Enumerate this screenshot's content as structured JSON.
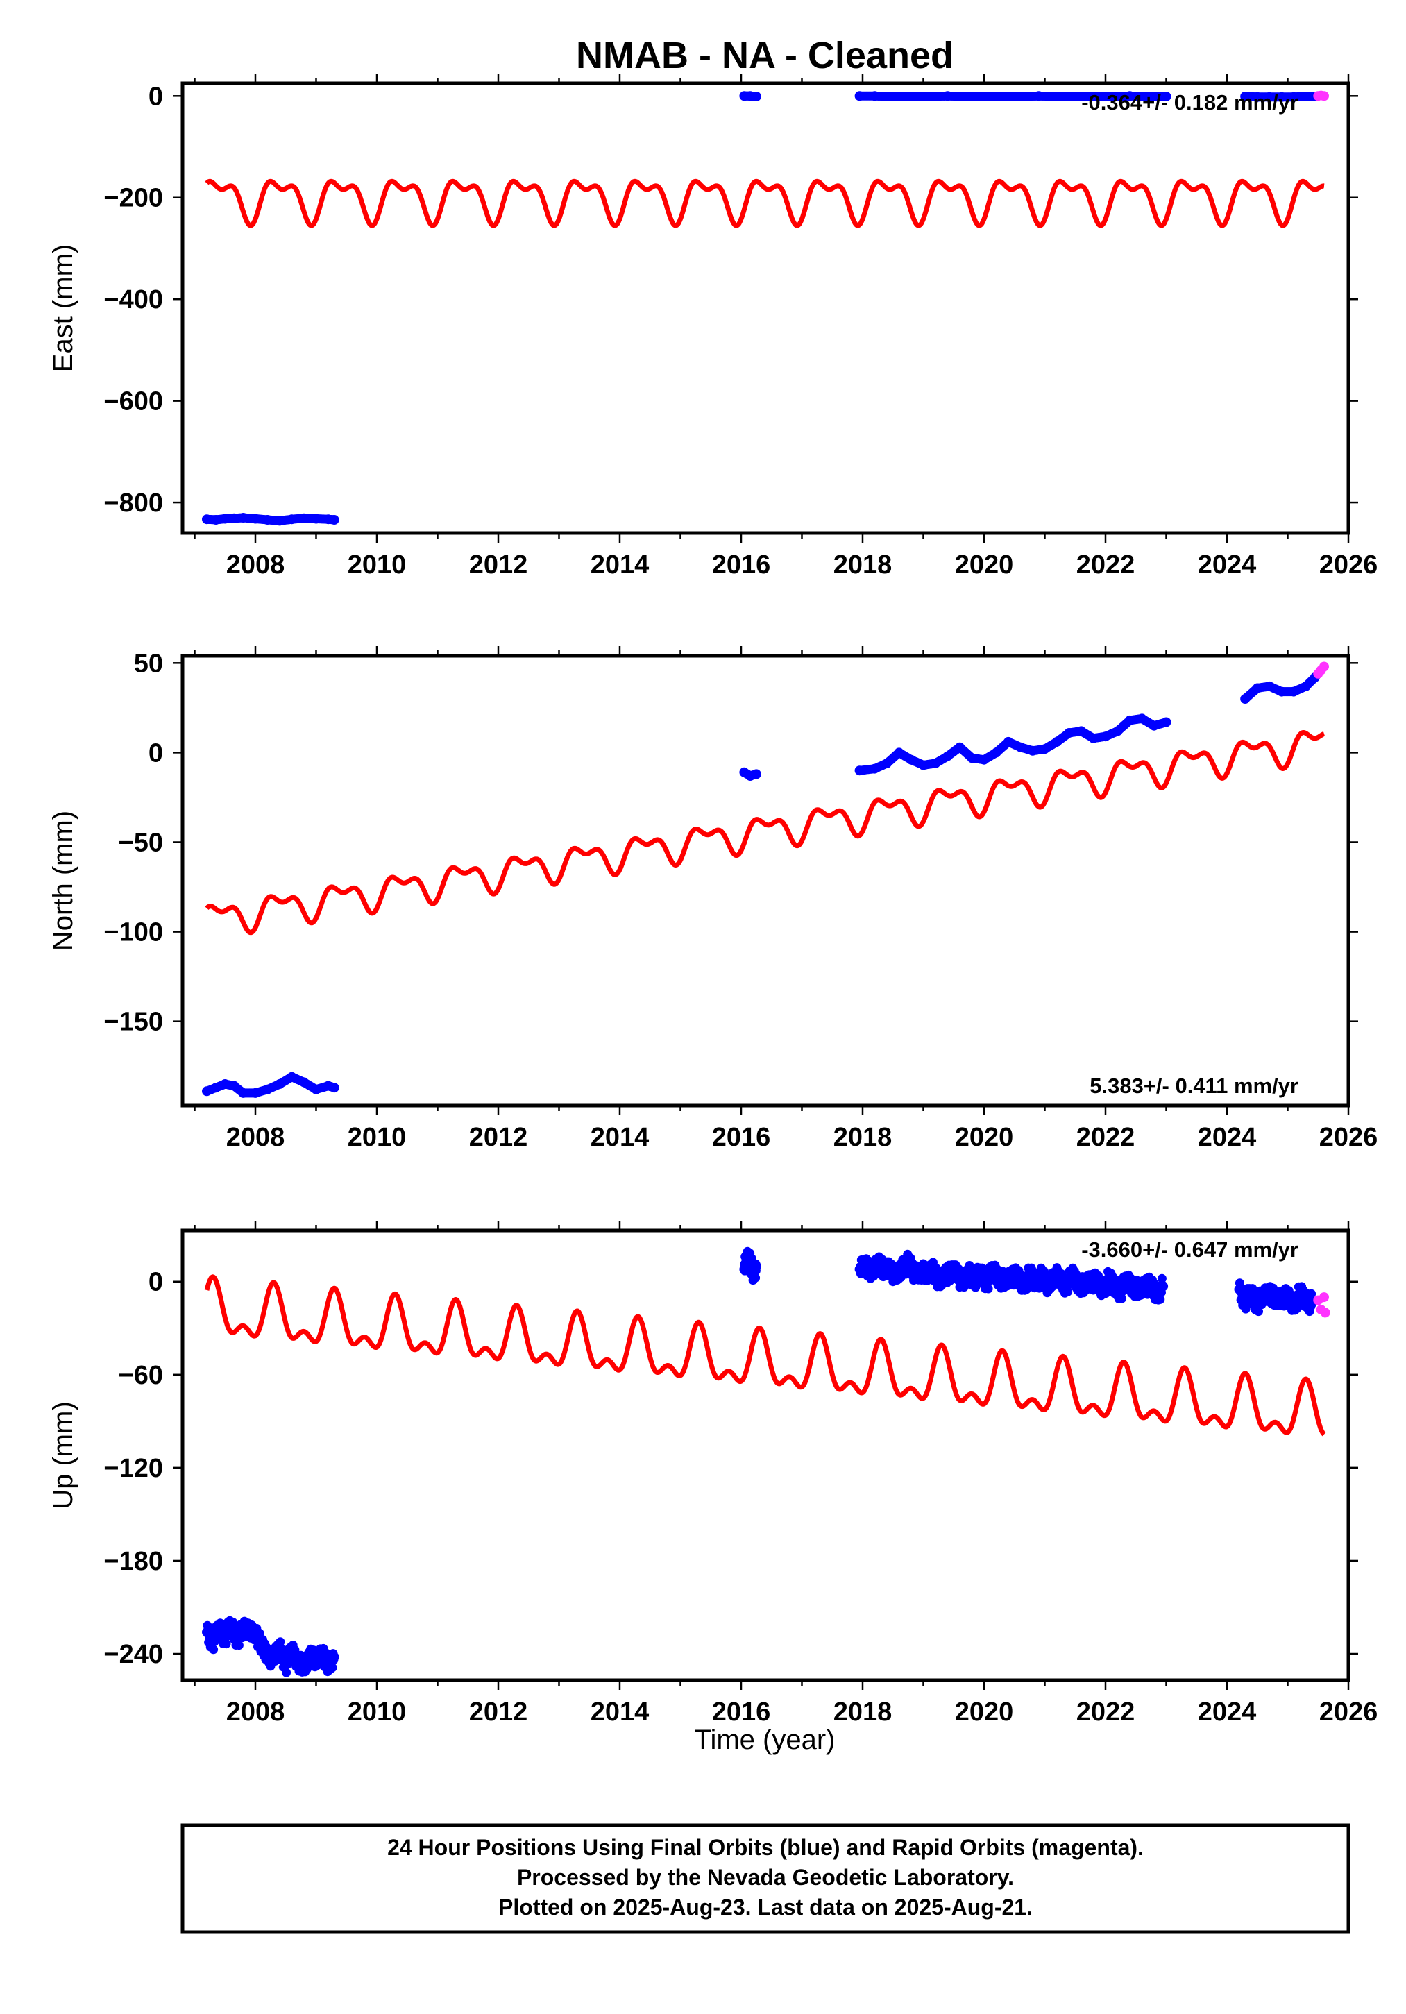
{
  "title": "NMAB  - NA - Cleaned",
  "colors": {
    "final": "#0000ff",
    "rapid": "#ff33ff",
    "model": "#ff0000",
    "frame": "#000000"
  },
  "xlabel": "Time (year)",
  "footer": [
    "24 Hour Positions Using Final Orbits (blue) and Rapid Orbits (magenta).",
    "Processed by the Nevada Geodetic Laboratory.",
    "Plotted on 2025-Aug-23. Last data on 2025-Aug-21."
  ],
  "chart_data": [
    {
      "type": "scatter",
      "ylabel": "East (mm)",
      "xlim": [
        2006.8,
        2026.0
      ],
      "ylim": [
        -860,
        25
      ],
      "xticks": [
        2008,
        2010,
        2012,
        2014,
        2016,
        2018,
        2020,
        2022,
        2024,
        2026
      ],
      "yticks": [
        0,
        -200,
        -400,
        -600,
        -800
      ],
      "rate_label": "-0.364+/- 0.182 mm/yr",
      "series": [
        {
          "role": "final",
          "x": [
            2007.2,
            2007.35,
            2007.5,
            2007.65,
            2007.8,
            2008.0,
            2008.2,
            2008.4,
            2008.6,
            2008.8,
            2009.0,
            2009.2,
            2009.3,
            2016.05,
            2016.15,
            2016.25,
            2017.95,
            2018.2,
            2018.5,
            2018.8,
            2019.1,
            2019.4,
            2019.7,
            2020.0,
            2020.3,
            2020.6,
            2020.9,
            2021.2,
            2021.5,
            2021.8,
            2022.1,
            2022.4,
            2022.7,
            2023.0,
            2024.3,
            2024.5,
            2024.7,
            2024.9,
            2025.1,
            2025.3,
            2025.45
          ],
          "y": [
            -833,
            -834,
            -832,
            -831,
            -830,
            -832,
            -834,
            -836,
            -833,
            -831,
            -832,
            -833,
            -834,
            0,
            0,
            -1,
            0,
            0,
            -1,
            -1,
            -1,
            0,
            -1,
            -1,
            -1,
            -1,
            0,
            -1,
            -1,
            -1,
            -1,
            0,
            -1,
            -1,
            -1,
            -2,
            -2,
            -2,
            -2,
            -1,
            -1
          ]
        },
        {
          "role": "rapid",
          "x": [
            2025.5,
            2025.55,
            2025.6
          ],
          "y": [
            0,
            1,
            0
          ]
        },
        {
          "role": "model",
          "mode": "line",
          "trend": [
            -200,
            0
          ],
          "annual": [
            -30,
            20
          ],
          "semi": [
            -12,
            15
          ],
          "x_from": 2007.2,
          "x_to": 2025.6
        }
      ]
    },
    {
      "type": "scatter",
      "ylabel": "North (mm)",
      "xlim": [
        2006.8,
        2026.0
      ],
      "ylim": [
        -197,
        54
      ],
      "xticks": [
        2008,
        2010,
        2012,
        2014,
        2016,
        2018,
        2020,
        2022,
        2024,
        2026
      ],
      "yticks": [
        50,
        0,
        -50,
        -100,
        -150
      ],
      "rate_label": "5.383+/- 0.411 mm/yr",
      "series": [
        {
          "role": "final",
          "x": [
            2007.2,
            2007.35,
            2007.5,
            2007.65,
            2007.8,
            2008.0,
            2008.2,
            2008.4,
            2008.6,
            2008.8,
            2009.0,
            2009.2,
            2009.3,
            2016.05,
            2016.15,
            2016.25,
            2017.95,
            2018.2,
            2018.4,
            2018.6,
            2018.8,
            2019.0,
            2019.2,
            2019.4,
            2019.6,
            2019.8,
            2020.0,
            2020.2,
            2020.4,
            2020.6,
            2020.8,
            2021.0,
            2021.2,
            2021.4,
            2021.6,
            2021.8,
            2022.0,
            2022.2,
            2022.4,
            2022.6,
            2022.8,
            2023.0,
            2024.3,
            2024.5,
            2024.7,
            2024.9,
            2025.1,
            2025.3,
            2025.45
          ],
          "y": [
            -189,
            -187,
            -185,
            -186,
            -190,
            -190,
            -188,
            -185,
            -181,
            -184,
            -188,
            -186,
            -187,
            -11,
            -13,
            -12,
            -10,
            -9,
            -6,
            0,
            -4,
            -7,
            -6,
            -2,
            3,
            -3,
            -4,
            0,
            6,
            3,
            1,
            2,
            6,
            11,
            12,
            8,
            9,
            12,
            18,
            19,
            15,
            17,
            30,
            36,
            37,
            34,
            34,
            37,
            42
          ],
          "x_extra": [],
          "y_extra": []
        },
        {
          "role": "rapid",
          "x": [
            2025.5,
            2025.55,
            2025.6
          ],
          "y": [
            44,
            46,
            48
          ]
        },
        {
          "role": "model",
          "mode": "line",
          "trend": [
            -93.0,
            5.383
          ],
          "annual": [
            -6,
            4
          ],
          "semi": [
            -3,
            3
          ],
          "x_from": 2007.2,
          "x_to": 2025.6
        }
      ]
    },
    {
      "type": "scatter",
      "ylabel": "Up (mm)",
      "xlim": [
        2006.8,
        2026.0
      ],
      "ylim": [
        -257,
        33
      ],
      "xticks": [
        2008,
        2010,
        2012,
        2014,
        2016,
        2018,
        2020,
        2022,
        2024,
        2026
      ],
      "yticks": [
        0,
        -60,
        -120,
        -180,
        -240
      ],
      "rate_label": "-3.660+/- 0.647 mm/yr",
      "series": [
        {
          "role": "final",
          "x": [
            2007.2,
            2007.3,
            2007.4,
            2007.5,
            2007.6,
            2007.7,
            2007.8,
            2008.0,
            2008.1,
            2008.2,
            2008.3,
            2008.4,
            2008.5,
            2008.6,
            2008.7,
            2008.8,
            2008.9,
            2009.0,
            2009.1,
            2009.2,
            2009.3,
            2016.05,
            2016.1,
            2016.15,
            2016.2,
            2016.25,
            2017.95,
            2018.05,
            2018.15,
            2018.25,
            2018.35,
            2018.45,
            2018.55,
            2018.65,
            2018.75,
            2018.85,
            2018.95,
            2019.05,
            2019.15,
            2019.25,
            2019.35,
            2019.45,
            2019.55,
            2019.65,
            2019.75,
            2019.85,
            2019.95,
            2020.05,
            2020.15,
            2020.25,
            2020.35,
            2020.45,
            2020.55,
            2020.65,
            2020.75,
            2020.85,
            2020.95,
            2021.05,
            2021.15,
            2021.25,
            2021.35,
            2021.45,
            2021.55,
            2021.65,
            2021.75,
            2021.85,
            2021.95,
            2022.05,
            2022.15,
            2022.25,
            2022.35,
            2022.45,
            2022.55,
            2022.65,
            2022.75,
            2022.85,
            2022.95,
            2024.2,
            2024.3,
            2024.4,
            2024.5,
            2024.6,
            2024.7,
            2024.8,
            2024.9,
            2025.0,
            2025.1,
            2025.2,
            2025.3,
            2025.4
          ],
          "y": [
            -226,
            -232,
            -224,
            -229,
            -222,
            -230,
            -225,
            -225,
            -236,
            -240,
            -244,
            -236,
            -247,
            -238,
            -244,
            -250,
            -240,
            -246,
            -238,
            -249,
            -242,
            8,
            15,
            12,
            5,
            10,
            8,
            12,
            4,
            14,
            6,
            10,
            2,
            9,
            12,
            5,
            8,
            3,
            10,
            -2,
            6,
            4,
            8,
            -3,
            6,
            2,
            5,
            0,
            7,
            3,
            -1,
            5,
            2,
            -2,
            4,
            0,
            3,
            -3,
            5,
            1,
            -2,
            3,
            0,
            -4,
            2,
            -1,
            -5,
            1,
            -3,
            -6,
            0,
            -2,
            -7,
            -1,
            -4,
            -8,
            -3,
            -5,
            -12,
            -8,
            -14,
            -10,
            -6,
            -13,
            -9,
            -11,
            -15,
            -8,
            -12,
            -14
          ],
          "spread": 6
        },
        {
          "role": "rapid",
          "x": [
            2025.5,
            2025.55,
            2025.6,
            2025.62
          ],
          "y": [
            -12,
            -18,
            -10,
            -20
          ]
        },
        {
          "role": "model",
          "mode": "line",
          "trend": [
            -20.0,
            -3.66
          ],
          "annual": [
            -5,
            14
          ],
          "semi": [
            -7,
            -5
          ],
          "x_from": 2007.2,
          "x_to": 2025.6
        }
      ]
    }
  ]
}
